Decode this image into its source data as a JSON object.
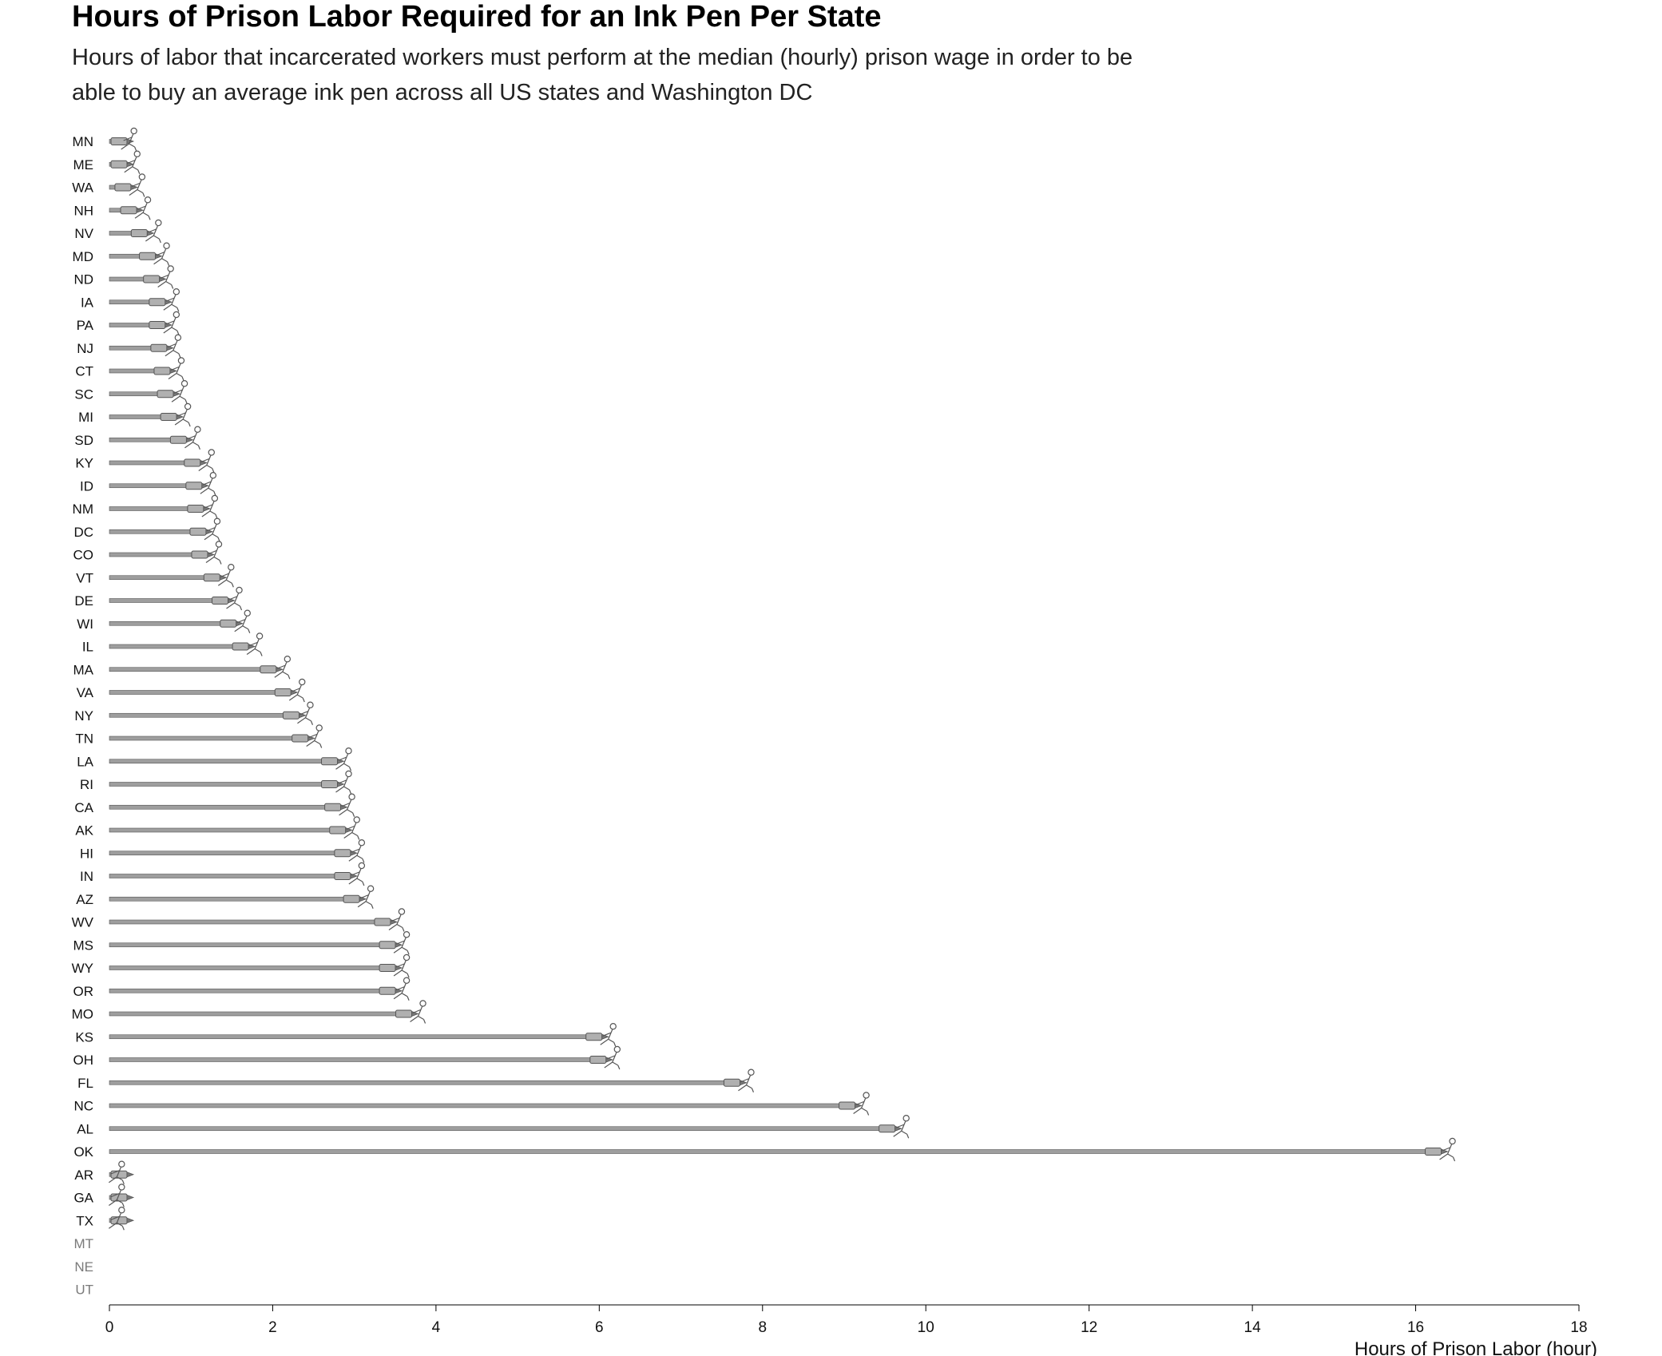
{
  "chart_data": {
    "type": "bar",
    "orientation": "horizontal",
    "title": "Hours of Prison Labor Required for an Ink Pen Per State",
    "subtitle": "Hours of labor that incarcerated workers must perform at the median (hourly) prison wage in order to be able to buy an average ink pen across all US states and Washington DC",
    "xlabel": "Hours of Prison Labor (hour)",
    "ylabel": "",
    "xlim": [
      0,
      18
    ],
    "xticks": [
      "0",
      "2",
      "4",
      "6",
      "8",
      "10",
      "12",
      "14",
      "16",
      "18"
    ],
    "grid": false,
    "legend": "none",
    "categories": [
      "MN",
      "ME",
      "WA",
      "NH",
      "NV",
      "MD",
      "ND",
      "IA",
      "PA",
      "NJ",
      "CT",
      "SC",
      "MI",
      "SD",
      "KY",
      "ID",
      "NM",
      "DC",
      "CO",
      "VT",
      "DE",
      "WI",
      "IL",
      "MA",
      "VA",
      "NY",
      "TN",
      "LA",
      "RI",
      "CA",
      "AK",
      "HI",
      "IN",
      "AZ",
      "WV",
      "MS",
      "WY",
      "OR",
      "MO",
      "KS",
      "OH",
      "FL",
      "NC",
      "AL",
      "OK",
      "AR",
      "GA",
      "TX",
      "MT",
      "NE",
      "UT"
    ],
    "values": [
      0.3,
      0.34,
      0.4,
      0.47,
      0.6,
      0.7,
      0.75,
      0.82,
      0.82,
      0.84,
      0.88,
      0.92,
      0.96,
      1.08,
      1.25,
      1.27,
      1.29,
      1.32,
      1.34,
      1.49,
      1.59,
      1.69,
      1.84,
      2.18,
      2.36,
      2.46,
      2.57,
      2.93,
      2.93,
      2.97,
      3.03,
      3.09,
      3.09,
      3.2,
      3.58,
      3.64,
      3.64,
      3.64,
      3.84,
      6.17,
      6.22,
      7.86,
      9.27,
      9.76,
      16.45,
      0.15,
      0.15,
      0.15,
      null,
      null,
      null
    ],
    "no_data_categories": [
      "MT",
      "NE",
      "UT"
    ],
    "colors": {
      "bar": "#9e9e9e",
      "bar_outline": "#555555",
      "figure": "#555555",
      "label": "#111111",
      "missing_label": "#7a7a7a"
    }
  }
}
